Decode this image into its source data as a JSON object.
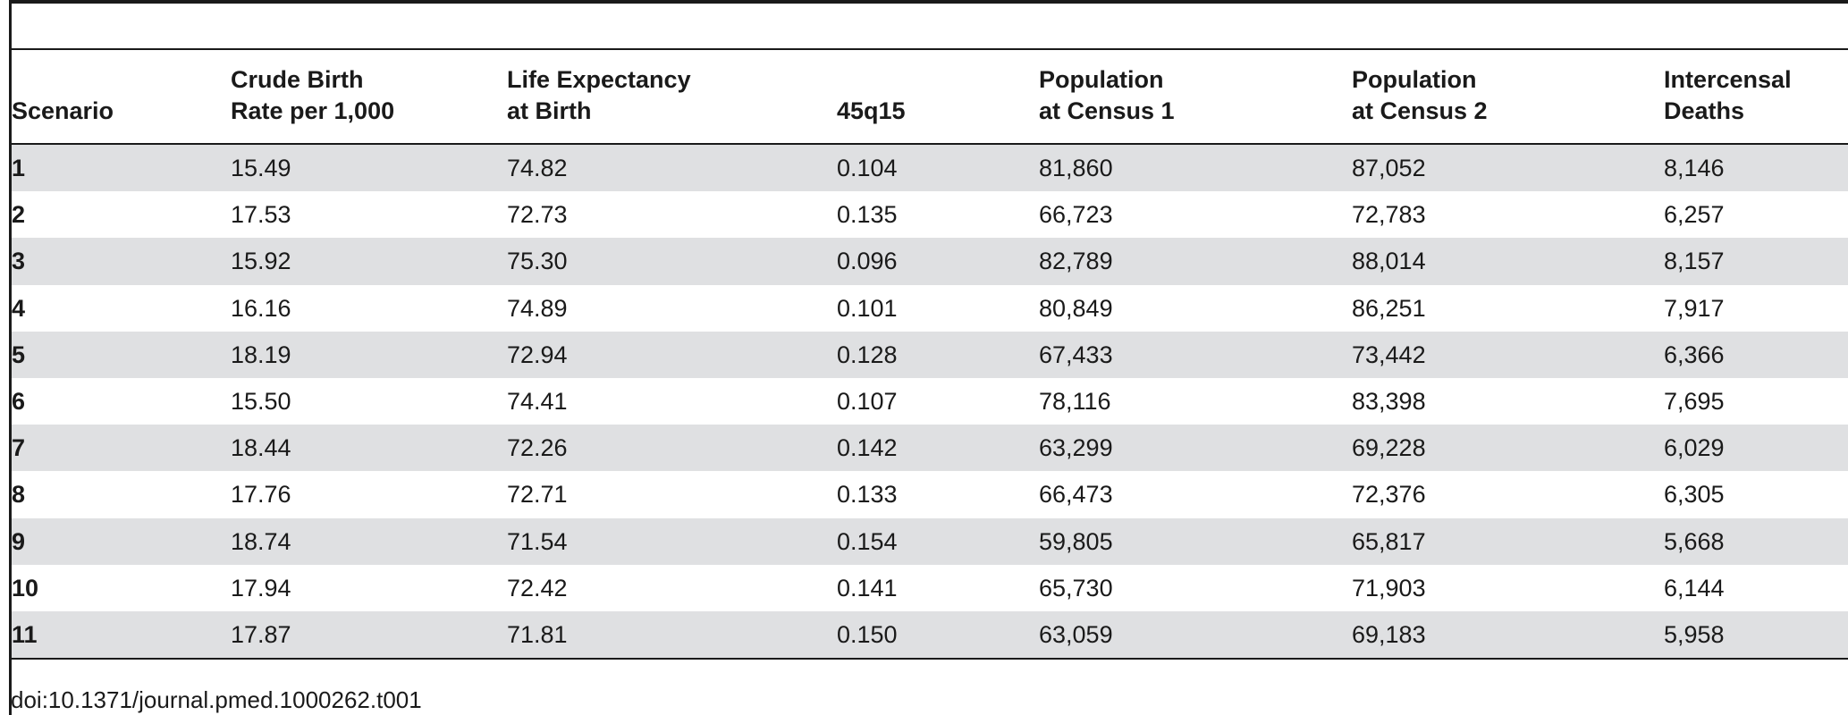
{
  "table": {
    "columns": [
      "Scenario",
      "Crude Birth\nRate per 1,000",
      "Life Expectancy\nat Birth",
      "45q15",
      "Population\nat Census 1",
      "Population\nat Census 2",
      "Intercensal\nDeaths"
    ],
    "rows": [
      [
        "1",
        "15.49",
        "74.82",
        "0.104",
        "81,860",
        "87,052",
        "8,146"
      ],
      [
        "2",
        "17.53",
        "72.73",
        "0.135",
        "66,723",
        "72,783",
        "6,257"
      ],
      [
        "3",
        "15.92",
        "75.30",
        "0.096",
        "82,789",
        "88,014",
        "8,157"
      ],
      [
        "4",
        "16.16",
        "74.89",
        "0.101",
        "80,849",
        "86,251",
        "7,917"
      ],
      [
        "5",
        "18.19",
        "72.94",
        "0.128",
        "67,433",
        "73,442",
        "6,366"
      ],
      [
        "6",
        "15.50",
        "74.41",
        "0.107",
        "78,116",
        "83,398",
        "7,695"
      ],
      [
        "7",
        "18.44",
        "72.26",
        "0.142",
        "63,299",
        "69,228",
        "6,029"
      ],
      [
        "8",
        "17.76",
        "72.71",
        "0.133",
        "66,473",
        "72,376",
        "6,305"
      ],
      [
        "9",
        "18.74",
        "71.54",
        "0.154",
        "59,805",
        "65,817",
        "5,668"
      ],
      [
        "10",
        "17.94",
        "72.42",
        "0.141",
        "65,730",
        "71,903",
        "6,144"
      ],
      [
        "11",
        "17.87",
        "71.81",
        "0.150",
        "63,059",
        "69,183",
        "5,958"
      ]
    ],
    "row_shading_color": "#dfe0e2"
  },
  "footer": {
    "doi": "doi:10.1371/journal.pmed.1000262.t001"
  }
}
